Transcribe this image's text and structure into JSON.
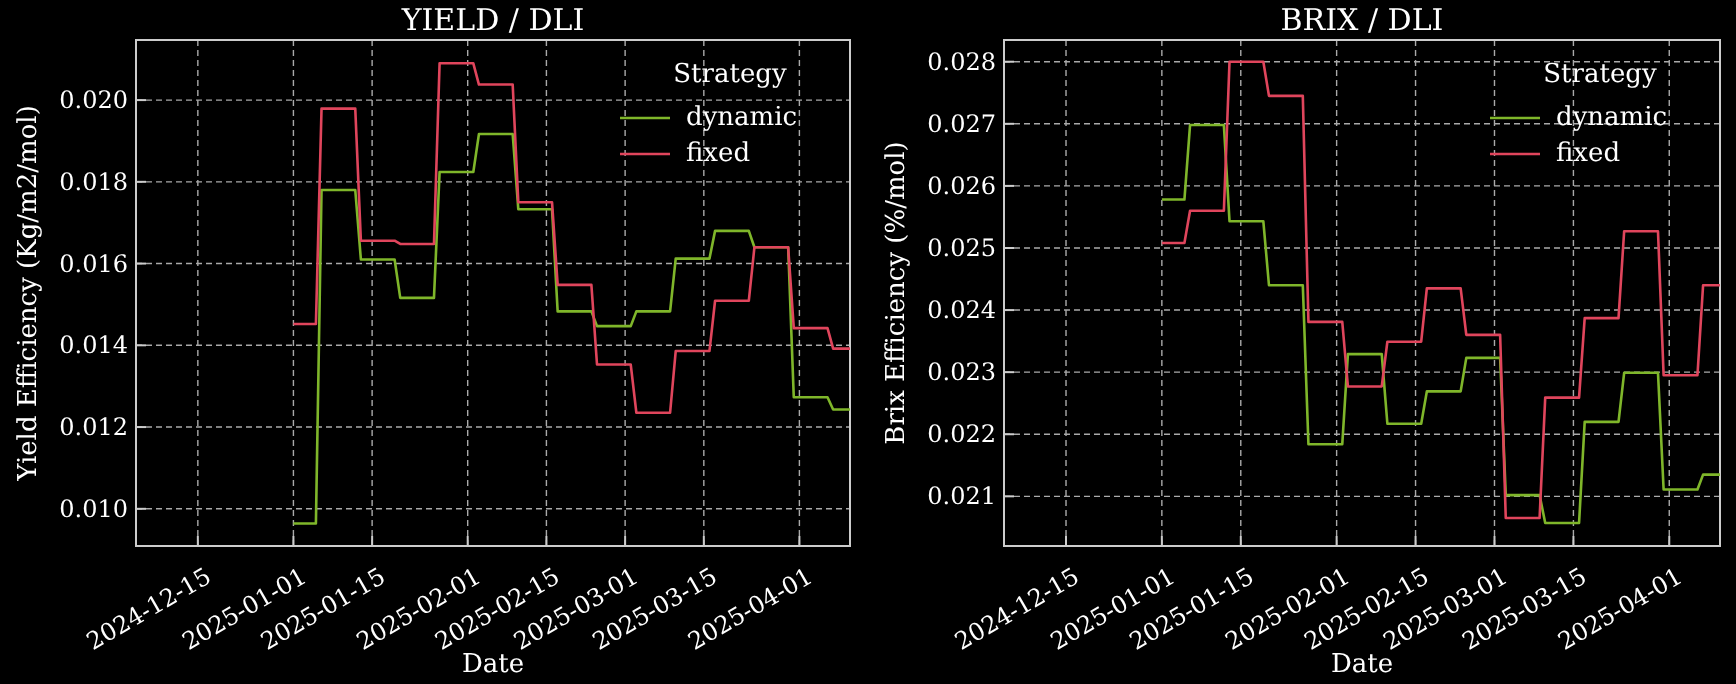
{
  "chart_data": [
    {
      "type": "line",
      "title": "YIELD / DLI",
      "xlabel": "Date",
      "ylabel": "Yield Efficiency (Kg/m2/mol)",
      "legend_title": "Strategy",
      "legend": "top right",
      "grid": true,
      "xlim": [
        "2024-12-04",
        "2025-04-10"
      ],
      "xticks": [
        "2024-12-15",
        "2025-01-01",
        "2025-01-15",
        "2025-02-01",
        "2025-02-15",
        "2025-03-01",
        "2025-03-15",
        "2025-04-01"
      ],
      "ylim": [
        0.00909,
        0.02147
      ],
      "yticks": [
        {
          "value": 0.01,
          "label": "0.010"
        },
        {
          "value": 0.012,
          "label": "0.012"
        },
        {
          "value": 0.014,
          "label": "0.014"
        },
        {
          "value": 0.016,
          "label": "0.016"
        },
        {
          "value": 0.018,
          "label": "0.018"
        },
        {
          "value": 0.02,
          "label": "0.020"
        }
      ],
      "x": [
        "2025-01-01",
        "2025-01-05",
        "2025-01-06",
        "2025-01-12",
        "2025-01-13",
        "2025-01-19",
        "2025-01-20",
        "2025-01-26",
        "2025-01-27",
        "2025-02-02",
        "2025-02-03",
        "2025-02-09",
        "2025-02-10",
        "2025-02-16",
        "2025-02-17",
        "2025-02-23",
        "2025-02-24",
        "2025-03-02",
        "2025-03-03",
        "2025-03-09",
        "2025-03-10",
        "2025-03-16",
        "2025-03-17",
        "2025-03-23",
        "2025-03-24",
        "2025-03-30",
        "2025-03-31",
        "2025-04-06",
        "2025-04-07",
        "2025-04-10"
      ],
      "series": [
        {
          "name": "dynamic",
          "color": "#7fb62a",
          "values": [
            0.00964,
            0.00964,
            0.0178,
            0.0178,
            0.0161,
            0.0161,
            0.01516,
            0.01516,
            0.01824,
            0.01824,
            0.01917,
            0.01917,
            0.01733,
            0.01733,
            0.01483,
            0.01483,
            0.01447,
            0.01447,
            0.01483,
            0.01483,
            0.01612,
            0.01612,
            0.0168,
            0.0168,
            0.0164,
            0.0164,
            0.01273,
            0.01273,
            0.01243,
            0.01243
          ]
        },
        {
          "name": "fixed",
          "color": "#e0455c",
          "values": [
            0.01452,
            0.01452,
            0.01979,
            0.01979,
            0.01656,
            0.01656,
            0.01648,
            0.01648,
            0.0209,
            0.0209,
            0.02038,
            0.02038,
            0.0175,
            0.0175,
            0.01548,
            0.01548,
            0.01353,
            0.01353,
            0.01235,
            0.01235,
            0.01386,
            0.01386,
            0.01509,
            0.01509,
            0.0164,
            0.0164,
            0.01442,
            0.01442,
            0.01392,
            0.01392
          ]
        }
      ]
    },
    {
      "type": "line",
      "title": "BRIX / DLI",
      "xlabel": "Date",
      "ylabel": "Brix Efficiency (%/mol)",
      "legend_title": "Strategy",
      "legend": "top right",
      "grid": true,
      "xlim": [
        "2024-12-04",
        "2025-04-10"
      ],
      "xticks": [
        "2024-12-15",
        "2025-01-01",
        "2025-01-15",
        "2025-02-01",
        "2025-02-15",
        "2025-03-01",
        "2025-03-15",
        "2025-04-01"
      ],
      "ylim": [
        0.0202,
        0.02835
      ],
      "yticks": [
        0.021,
        0.022,
        0.023,
        0.024,
        0.025,
        0.026,
        0.027,
        0.028
      ],
      "x": [
        "2025-01-01",
        "2025-01-05",
        "2025-01-06",
        "2025-01-12",
        "2025-01-13",
        "2025-01-19",
        "2025-01-20",
        "2025-01-26",
        "2025-01-27",
        "2025-02-02",
        "2025-02-03",
        "2025-02-09",
        "2025-02-10",
        "2025-02-16",
        "2025-02-17",
        "2025-02-23",
        "2025-02-24",
        "2025-03-02",
        "2025-03-03",
        "2025-03-09",
        "2025-03-10",
        "2025-03-16",
        "2025-03-17",
        "2025-03-23",
        "2025-03-24",
        "2025-03-30",
        "2025-03-31",
        "2025-04-06",
        "2025-04-07",
        "2025-04-10"
      ],
      "series": [
        {
          "name": "dynamic",
          "color": "#7fb62a",
          "values": [
            0.02578,
            0.02578,
            0.02698,
            0.02698,
            0.02543,
            0.02543,
            0.0244,
            0.0244,
            0.02184,
            0.02184,
            0.02329,
            0.02329,
            0.02217,
            0.02217,
            0.02269,
            0.02269,
            0.02323,
            0.02323,
            0.02102,
            0.02102,
            0.02057,
            0.02057,
            0.0222,
            0.0222,
            0.02299,
            0.02299,
            0.02111,
            0.02111,
            0.02135,
            0.02135
          ]
        },
        {
          "name": "fixed",
          "color": "#e0455c",
          "values": [
            0.02508,
            0.02508,
            0.0256,
            0.0256,
            0.028,
            0.028,
            0.02745,
            0.02745,
            0.02381,
            0.02381,
            0.02277,
            0.02277,
            0.02349,
            0.02349,
            0.02435,
            0.02435,
            0.0236,
            0.0236,
            0.02065,
            0.02065,
            0.02259,
            0.02259,
            0.02387,
            0.02387,
            0.02527,
            0.02527,
            0.02295,
            0.02295,
            0.0244,
            0.0244
          ]
        }
      ]
    }
  ]
}
